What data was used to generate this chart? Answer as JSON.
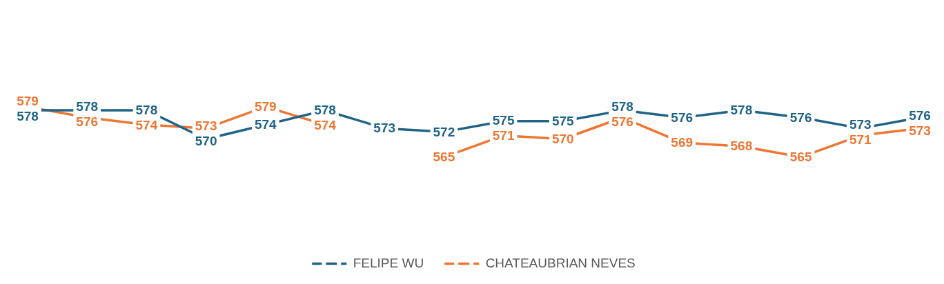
{
  "chart_data": {
    "type": "line",
    "categories": [
      null,
      null,
      null,
      null,
      null,
      null,
      null,
      null,
      null,
      null,
      null,
      null,
      null,
      null,
      null,
      null
    ],
    "series": [
      {
        "name": "FELIPE WU",
        "color": "#1f6387",
        "values": [
          578,
          578,
          578,
          570,
          574,
          578,
          573,
          572,
          575,
          575,
          578,
          576,
          578,
          576,
          573,
          576
        ]
      },
      {
        "name": "CHATEAUBRIAN NEVES",
        "color": "#ee7633",
        "values": [
          579,
          576,
          574,
          573,
          579,
          574,
          null,
          565,
          571,
          570,
          576,
          569,
          568,
          565,
          571,
          573
        ]
      }
    ],
    "data_labels": true,
    "legend": "bottom",
    "line_style": "solid",
    "grid": false
  }
}
